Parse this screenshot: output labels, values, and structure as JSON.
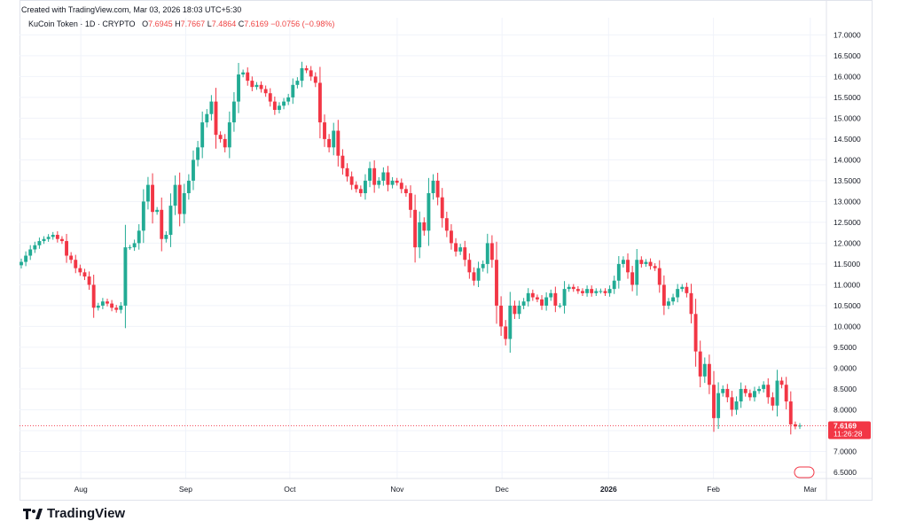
{
  "header": {
    "created": "Created with TradingView.com, Mar 03, 2026 18:03 UTC+5:30"
  },
  "legend": {
    "symbol": "KuCoin Token · 1D · CRYPTO",
    "o_label": "O",
    "o_value": "7.6945",
    "h_label": "H",
    "h_value": "7.7667",
    "l_label": "L",
    "l_value": "7.4864",
    "c_label": "C",
    "c_value": "7.6169",
    "change": "−0.0756 (−0.98%)"
  },
  "price_tag": {
    "price": "7.6169",
    "countdown": "11:26:28"
  },
  "brand": {
    "name": "TradingView"
  },
  "colors": {
    "up": "#22ab94",
    "down": "#f23645",
    "grid": "#f0f3fa",
    "last_line": "#f23645"
  },
  "chart_data": {
    "type": "candlestick",
    "y_ticks": [
      "17.0000",
      "16.5000",
      "16.0000",
      "15.5000",
      "15.0000",
      "14.5000",
      "14.0000",
      "13.5000",
      "13.0000",
      "12.5000",
      "12.0000",
      "11.5000",
      "11.0000",
      "10.5000",
      "10.0000",
      "9.5000",
      "9.0000",
      "8.5000",
      "8.0000",
      "7.5000",
      "7.0000",
      "6.5000"
    ],
    "ylim": [
      6.35,
      17.2
    ],
    "x_ticks": [
      {
        "label": "Aug",
        "t": 0.076
      },
      {
        "label": "Sep",
        "t": 0.206
      },
      {
        "label": "Oct",
        "t": 0.335
      },
      {
        "label": "Nov",
        "t": 0.468
      },
      {
        "label": "Dec",
        "t": 0.598
      },
      {
        "label": "2026",
        "t": 0.73
      },
      {
        "label": "Feb",
        "t": 0.86
      },
      {
        "label": "Mar",
        "t": 0.98
      }
    ],
    "last_price": 7.6169,
    "closes": [
      11.55,
      11.7,
      11.85,
      11.95,
      12.05,
      12.1,
      12.15,
      12.2,
      12.1,
      12.05,
      11.7,
      11.6,
      11.4,
      11.3,
      11.2,
      11.0,
      10.45,
      10.5,
      10.6,
      10.55,
      10.45,
      10.4,
      10.5,
      11.9,
      11.9,
      12.0,
      12.3,
      13.0,
      13.4,
      12.75,
      12.8,
      12.1,
      12.2,
      12.9,
      13.4,
      12.7,
      13.2,
      13.5,
      14.0,
      14.3,
      14.9,
      15.1,
      15.4,
      14.6,
      14.5,
      14.3,
      14.9,
      15.4,
      16.05,
      16.1,
      15.9,
      15.75,
      15.8,
      15.7,
      15.6,
      15.4,
      15.2,
      15.3,
      15.4,
      15.5,
      15.8,
      15.9,
      16.2,
      16.15,
      16.0,
      15.85,
      14.9,
      14.5,
      14.3,
      14.7,
      14.1,
      13.8,
      13.6,
      13.4,
      13.3,
      13.2,
      13.5,
      13.8,
      13.4,
      13.5,
      13.7,
      13.4,
      13.5,
      13.45,
      13.3,
      13.2,
      12.8,
      11.9,
      12.5,
      12.3,
      13.2,
      13.5,
      13.1,
      12.6,
      12.3,
      12.0,
      11.8,
      11.9,
      11.6,
      11.3,
      11.1,
      11.4,
      11.5,
      12.0,
      11.6,
      10.5,
      10.0,
      9.7,
      10.5,
      10.3,
      10.5,
      10.6,
      10.8,
      10.7,
      10.65,
      10.5,
      10.7,
      10.8,
      10.5,
      10.5,
      10.9,
      10.95,
      10.9,
      10.85,
      10.8,
      10.9,
      10.8,
      10.85,
      10.85,
      10.8,
      10.9,
      11.1,
      11.5,
      11.6,
      11.3,
      11.0,
      11.6,
      11.5,
      11.55,
      11.45,
      11.4,
      11.0,
      10.5,
      10.6,
      10.7,
      10.9,
      10.95,
      10.8,
      10.3,
      9.4,
      8.8,
      9.1,
      8.6,
      7.8,
      8.4,
      8.5,
      8.3,
      8.0,
      8.2,
      8.5,
      8.4,
      8.3,
      8.45,
      8.5,
      8.6,
      8.3,
      8.1,
      8.7,
      8.6,
      8.2,
      7.65,
      7.6,
      7.62
    ]
  }
}
